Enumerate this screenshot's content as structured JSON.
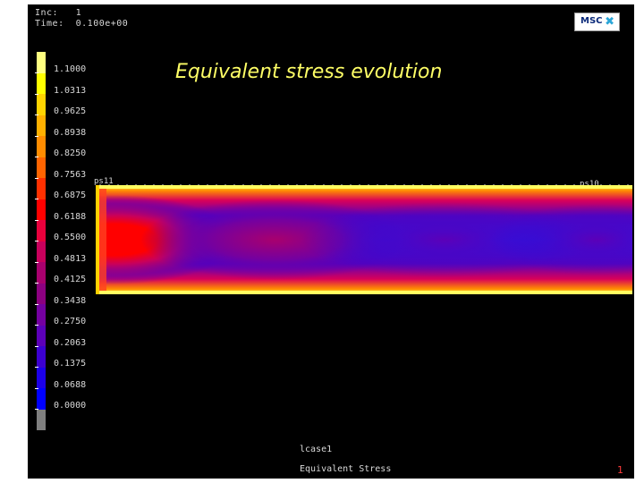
{
  "info": {
    "inc_line": "Inc:   1",
    "time_line": "Time:  0.100e+00"
  },
  "logo": {
    "text": "MSC",
    "mark": "✖"
  },
  "title": "Equivalent stress evolution",
  "scale": {
    "labels": [
      "1.1000",
      "1.0313",
      "0.9625",
      "0.8938",
      "0.8250",
      "0.7563",
      "0.6875",
      "0.6188",
      "0.5500",
      "0.4813",
      "0.4125",
      "0.3438",
      "0.2750",
      "0.2063",
      "0.1375",
      "0.0688",
      "0.0000"
    ],
    "colors": [
      "#ffff80",
      "#ffff00",
      "#ffd400",
      "#ffb000",
      "#ff8c00",
      "#ff6400",
      "#ff3000",
      "#ff0000",
      "#e8003c",
      "#c8005c",
      "#a8006e",
      "#8c0080",
      "#7400a0",
      "#5c00b8",
      "#3c00d0",
      "#1c00e8",
      "#0000ff",
      "#7f7f7f"
    ]
  },
  "plot": {
    "node_left": "ps11",
    "node_right": "ps10"
  },
  "legend": {
    "label": "lcase1",
    "variable": "Equivalent Stress"
  },
  "page_number": "1"
}
